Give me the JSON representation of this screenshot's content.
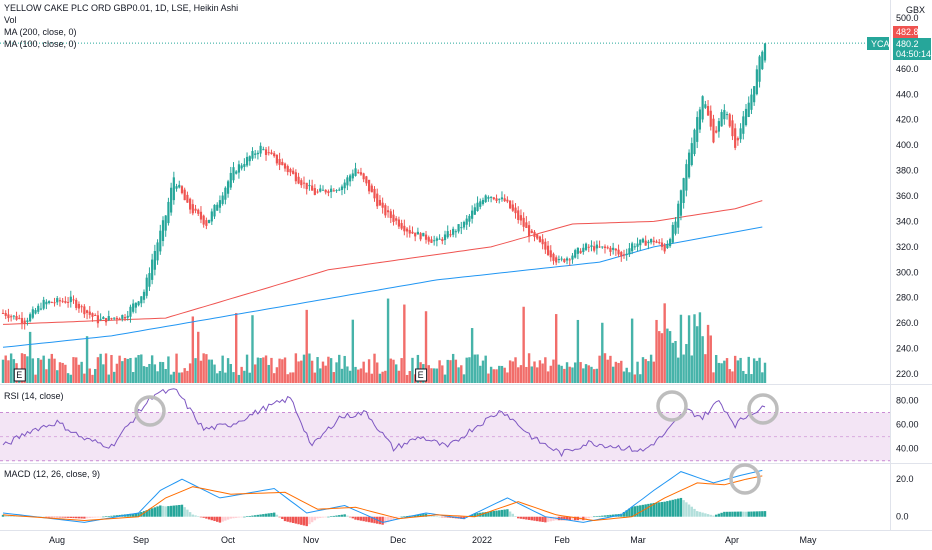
{
  "header": {
    "title": "YELLOW CAKE PLC ORD GBP0.01, 1D, LSE, Heikin Ashi",
    "vol": "Vol",
    "ma200": "MA (200, close, 0)",
    "ma100": "MA (100, close, 0)"
  },
  "currency": "GBX",
  "price": {
    "symbol": "YCA",
    "last": "480.2",
    "high_badge": "482.8",
    "countdown": "04:50:14"
  },
  "indicators": {
    "rsi_label": "RSI (14, close)",
    "macd_label": "MACD (12, 26, close, 9)"
  },
  "earnings_marker": "E",
  "colors": {
    "up": "#26a69a",
    "down": "#ef5350",
    "ma200": "#ef5350",
    "ma100": "#2196f3",
    "rsi_line": "#7e57c2",
    "rsi_band": "#f3e5f5",
    "macd_line": "#2196f3",
    "signal_line": "#ff6d00",
    "annotation": "#bdbdbd"
  },
  "chart_data": [
    {
      "type": "candlestick",
      "title": "YELLOW CAKE PLC ORD GBP0.01, 1D, LSE, Heikin Ashi",
      "x_ticks": [
        "Aug",
        "Sep",
        "Oct",
        "Nov",
        "Dec",
        "2022",
        "Feb",
        "Mar",
        "Apr",
        "May"
      ],
      "y_ticks": [
        220,
        240,
        260,
        280,
        300,
        320,
        340,
        360,
        380,
        400,
        420,
        440,
        460,
        480,
        500
      ],
      "ylim": [
        212,
        508
      ],
      "anchors": [
        [
          0,
          268
        ],
        [
          8,
          262
        ],
        [
          15,
          276
        ],
        [
          25,
          278
        ],
        [
          35,
          262
        ],
        [
          45,
          266
        ],
        [
          52,
          285
        ],
        [
          55,
          310
        ],
        [
          60,
          345
        ],
        [
          63,
          375
        ],
        [
          68,
          352
        ],
        [
          75,
          338
        ],
        [
          85,
          380
        ],
        [
          95,
          398
        ],
        [
          105,
          380
        ],
        [
          115,
          362
        ],
        [
          125,
          368
        ],
        [
          130,
          382
        ],
        [
          140,
          348
        ],
        [
          150,
          332
        ],
        [
          160,
          324
        ],
        [
          170,
          338
        ],
        [
          178,
          362
        ],
        [
          185,
          356
        ],
        [
          195,
          328
        ],
        [
          205,
          308
        ],
        [
          215,
          320
        ],
        [
          225,
          318
        ],
        [
          228,
          312
        ],
        [
          232,
          322
        ],
        [
          240,
          325
        ],
        [
          244,
          318
        ],
        [
          248,
          340
        ],
        [
          253,
          395
        ],
        [
          258,
          440
        ],
        [
          262,
          405
        ],
        [
          266,
          430
        ],
        [
          270,
          400
        ],
        [
          276,
          440
        ],
        [
          280,
          476
        ],
        [
          281,
          480
        ]
      ],
      "ma200": [
        [
          0,
          259
        ],
        [
          60,
          264
        ],
        [
          120,
          302
        ],
        [
          180,
          320
        ],
        [
          210,
          338
        ],
        [
          240,
          340
        ],
        [
          270,
          350
        ],
        [
          281,
          357
        ]
      ],
      "ma100": [
        [
          0,
          241
        ],
        [
          40,
          250
        ],
        [
          100,
          272
        ],
        [
          160,
          294
        ],
        [
          220,
          308
        ],
        [
          240,
          320
        ],
        [
          281,
          336
        ]
      ],
      "volume_ylim": [
        0,
        1
      ],
      "earnings_bar_index": [
        6,
        154
      ]
    },
    {
      "type": "line",
      "title": "RSI (14, close)",
      "y_ticks": [
        40,
        60,
        80
      ],
      "ylim": [
        29,
        92
      ],
      "band": [
        30,
        70
      ],
      "anchors": [
        [
          0,
          42
        ],
        [
          10,
          55
        ],
        [
          20,
          62
        ],
        [
          30,
          48
        ],
        [
          40,
          42
        ],
        [
          50,
          70
        ],
        [
          56,
          86
        ],
        [
          64,
          88
        ],
        [
          74,
          56
        ],
        [
          84,
          60
        ],
        [
          96,
          73
        ],
        [
          106,
          82
        ],
        [
          114,
          42
        ],
        [
          124,
          66
        ],
        [
          134,
          70
        ],
        [
          144,
          40
        ],
        [
          154,
          50
        ],
        [
          164,
          41
        ],
        [
          174,
          58
        ],
        [
          184,
          72
        ],
        [
          196,
          48
        ],
        [
          206,
          36
        ],
        [
          216,
          45
        ],
        [
          226,
          42
        ],
        [
          236,
          38
        ],
        [
          244,
          52
        ],
        [
          252,
          72
        ],
        [
          258,
          66
        ],
        [
          264,
          80
        ],
        [
          270,
          60
        ],
        [
          276,
          70
        ],
        [
          281,
          74
        ]
      ]
    },
    {
      "type": "line",
      "title": "MACD (12, 26, close, 9)",
      "y_ticks": [
        0.0,
        20.0
      ],
      "ylim": [
        -6,
        27
      ],
      "series": [
        {
          "name": "MACD",
          "anchors": [
            [
              0,
              2
            ],
            [
              30,
              -3
            ],
            [
              50,
              2
            ],
            [
              58,
              14
            ],
            [
              66,
              20
            ],
            [
              80,
              10
            ],
            [
              100,
              15
            ],
            [
              112,
              2
            ],
            [
              126,
              6
            ],
            [
              140,
              -3
            ],
            [
              156,
              2
            ],
            [
              170,
              -1
            ],
            [
              186,
              10
            ],
            [
              200,
              0
            ],
            [
              214,
              -3
            ],
            [
              228,
              1
            ],
            [
              240,
              14
            ],
            [
              250,
              24
            ],
            [
              262,
              18
            ],
            [
              272,
              22
            ],
            [
              281,
              25
            ]
          ]
        },
        {
          "name": "Signal",
          "anchors": [
            [
              0,
              1
            ],
            [
              30,
              -2
            ],
            [
              50,
              0
            ],
            [
              60,
              10
            ],
            [
              70,
              16
            ],
            [
              84,
              12
            ],
            [
              104,
              13
            ],
            [
              116,
              4
            ],
            [
              130,
              5
            ],
            [
              146,
              -1
            ],
            [
              160,
              1
            ],
            [
              174,
              0
            ],
            [
              190,
              8
            ],
            [
              204,
              1
            ],
            [
              218,
              -2
            ],
            [
              232,
              0
            ],
            [
              244,
              10
            ],
            [
              256,
              18
            ],
            [
              266,
              17
            ],
            [
              274,
              20
            ],
            [
              281,
              22
            ]
          ]
        }
      ]
    }
  ]
}
